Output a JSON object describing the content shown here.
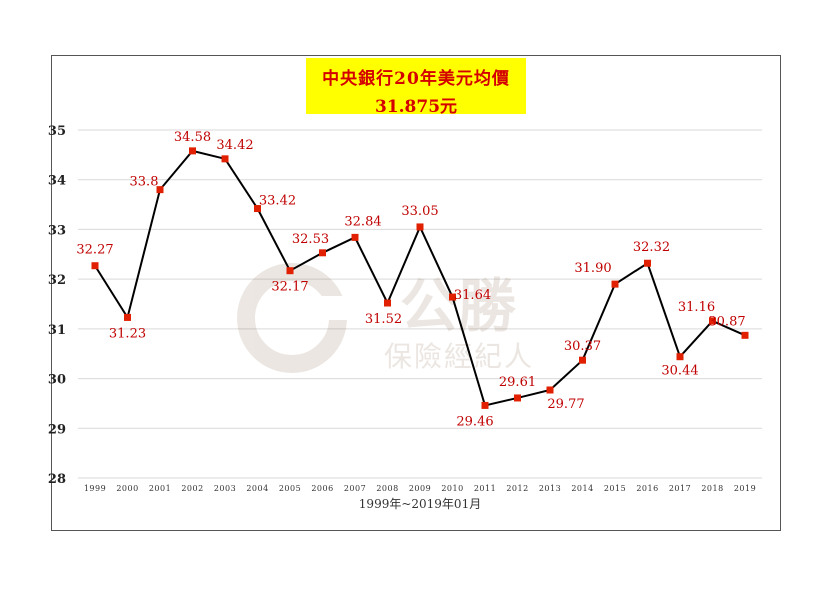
{
  "title": {
    "line1": "中央銀行20年美元均價",
    "line2": "31.875元"
  },
  "watermark": {
    "brand": "公勝",
    "subtitle": "保險經紀人"
  },
  "colors": {
    "line": "#000000",
    "marker": "#e02000",
    "label": "#c00000",
    "title_bg": "#ffff00",
    "title_text": "#d40000",
    "grid": "#d9d9d9"
  },
  "chart_data": {
    "type": "line",
    "title": "中央銀行20年美元均價",
    "subtitle": "31.875元",
    "xlabel": "1999年~2019年01月",
    "ylabel": "",
    "categories": [
      "1999",
      "2000",
      "2001",
      "2002",
      "2003",
      "2004",
      "2005",
      "2006",
      "2007",
      "2008",
      "2009",
      "2010",
      "2011",
      "2012",
      "2013",
      "2014",
      "2015",
      "2016",
      "2017",
      "2018",
      "2019"
    ],
    "series": [
      {
        "values": [
          32.27,
          31.23,
          33.8,
          34.58,
          34.42,
          33.42,
          32.17,
          32.53,
          32.84,
          31.52,
          33.05,
          31.64,
          29.46,
          29.61,
          29.77,
          30.37,
          31.9,
          32.32,
          30.44,
          31.16,
          30.87
        ],
        "labels": [
          "32.27",
          "31.23",
          "33.8",
          "34.58",
          "34.42",
          "33.42",
          "32.17",
          "32.53",
          "32.84",
          "31.52",
          "33.05",
          "31.64",
          "29.46",
          "29.61",
          "29.77",
          "30.37",
          "31.90",
          "32.32",
          "30.44",
          "31.16",
          "30.87"
        ]
      }
    ],
    "ylim": [
      28,
      35
    ],
    "yticks": [
      "28",
      "29",
      "30",
      "31",
      "32",
      "33",
      "34",
      "35"
    ],
    "grid": true,
    "legend": "none"
  }
}
